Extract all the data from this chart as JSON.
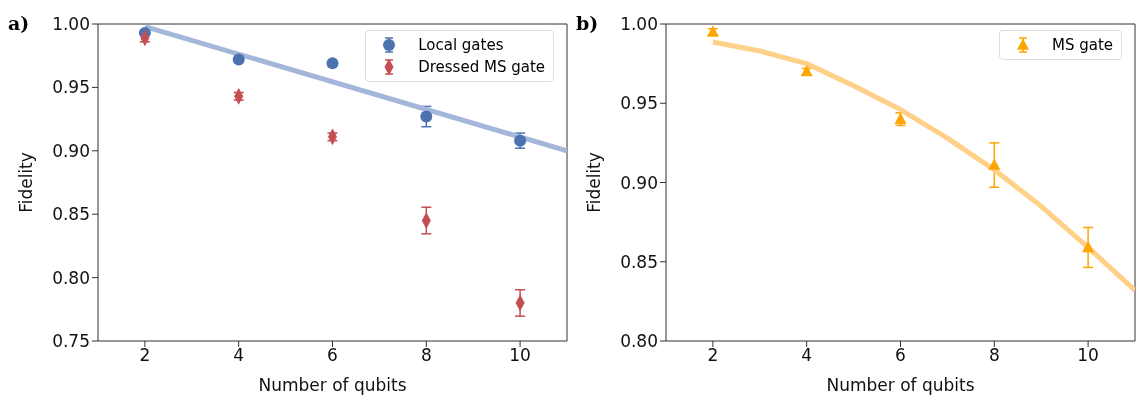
{
  "chart_data": [
    {
      "type": "scatter",
      "annotations": [
        "a)"
      ],
      "xlabel": "Number of qubits",
      "ylabel": "Fidelity",
      "xlim": [
        1,
        11
      ],
      "xticks": [
        2,
        4,
        6,
        8,
        10
      ],
      "ylim": [
        0.75,
        1.0
      ],
      "yticks": [
        {
          "value": 0.75,
          "label": "0.75"
        },
        {
          "value": 0.8,
          "label": "0.80"
        },
        {
          "value": 0.85,
          "label": "0.85"
        },
        {
          "value": 0.9,
          "label": "0.90"
        },
        {
          "value": 0.95,
          "label": "0.95"
        },
        {
          "value": 1.0,
          "label": "1.00"
        }
      ],
      "legend": "top right",
      "series": [
        {
          "name": "Local gates",
          "color": "#4c72b0",
          "marker": "circle",
          "x": [
            2,
            4,
            6,
            8,
            10
          ],
          "values": [
            0.993,
            0.972,
            0.969,
            0.927,
            0.908
          ],
          "errors": [
            null,
            null,
            null,
            0.008,
            0.006
          ]
        },
        {
          "name": "Dressed MS gate",
          "color": "#c44e52",
          "marker": "diamond",
          "x": [
            2,
            4,
            6,
            8,
            10
          ],
          "values": [
            0.989,
            0.943,
            0.911,
            0.845,
            0.78
          ],
          "errors": [
            0.003,
            0.003,
            0.003,
            0.0105,
            0.0104
          ]
        },
        {
          "type": "line",
          "color": "#a4b6da",
          "x": [
            2,
            11
          ],
          "values": [
            0.998,
            0.9
          ]
        }
      ]
    },
    {
      "type": "scatter",
      "annotations": [
        "b)"
      ],
      "xlabel": "Number of qubits",
      "ylabel": "Fidelity",
      "xlim": [
        1,
        11
      ],
      "xticks": [
        2,
        4,
        6,
        8,
        10
      ],
      "ylim": [
        0.8,
        1.0
      ],
      "yticks": [
        {
          "value": 0.8,
          "label": "0.80"
        },
        {
          "value": 0.85,
          "label": "0.85"
        },
        {
          "value": 0.9,
          "label": "0.90"
        },
        {
          "value": 0.95,
          "label": "0.95"
        },
        {
          "value": 1.0,
          "label": "1.00"
        }
      ],
      "legend": "top right",
      "series": [
        {
          "name": "MS gate",
          "color": "#ffa500",
          "marker": "triangle",
          "x": [
            2,
            4,
            6,
            8,
            10
          ],
          "values": [
            0.995,
            0.97,
            0.94,
            0.911,
            0.859
          ],
          "errors": [
            0.002,
            0.002,
            0.004,
            0.014,
            0.0126
          ]
        },
        {
          "type": "line",
          "color": "#ffd088",
          "x": [
            2,
            3,
            4,
            5,
            6,
            7,
            8,
            9,
            10,
            11
          ],
          "values": [
            0.9886,
            0.983,
            0.975,
            0.961,
            0.946,
            0.928,
            0.908,
            0.885,
            0.859,
            0.832
          ]
        }
      ]
    }
  ]
}
